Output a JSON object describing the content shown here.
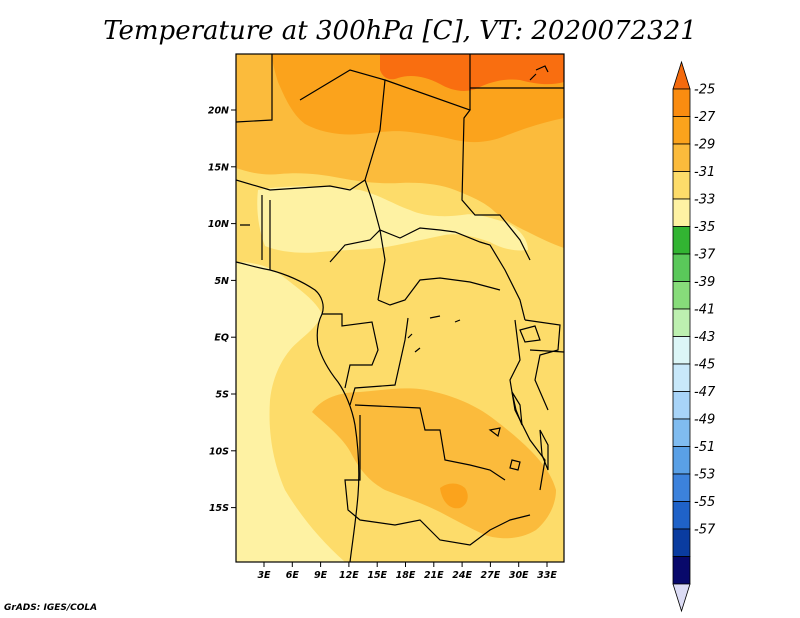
{
  "title": "Temperature at 300hPa [C], VT: 2020072321",
  "credit": "GrADS: IGES/COLA",
  "map": {
    "lon_ticks": [
      "3E",
      "6E",
      "9E",
      "12E",
      "15E",
      "18E",
      "21E",
      "24E",
      "27E",
      "30E",
      "33E"
    ],
    "lat_ticks": [
      "20N",
      "15N",
      "10N",
      "5N",
      "EQ",
      "5S",
      "10S",
      "15S"
    ],
    "region_colors": {
      "minus25_27": "#f96e10",
      "minus27_29": "#fba31c",
      "minus29_31": "#fbbb3c",
      "minus31_33": "#fddc6a",
      "minus33_35": "#fef2a3"
    }
  },
  "colorbar": {
    "labels": [
      "-25",
      "-27",
      "-29",
      "-31",
      "-33",
      "-35",
      "-37",
      "-39",
      "-41",
      "-43",
      "-45",
      "-47",
      "-49",
      "-51",
      "-53",
      "-55",
      "-57"
    ],
    "colors": [
      "#f46a0d",
      "#fa8c10",
      "#fba31c",
      "#fbbb3c",
      "#fddc6a",
      "#fef2a3",
      "#32b432",
      "#5ac85a",
      "#87dc7a",
      "#bdf0b0",
      "#dcf6f7",
      "#c8e8fa",
      "#a8d4f8",
      "#80bcf0",
      "#5aa0e6",
      "#3c82dc",
      "#1f62c8",
      "#0a3ca0",
      "#08096b",
      "#dcdcf5"
    ]
  }
}
